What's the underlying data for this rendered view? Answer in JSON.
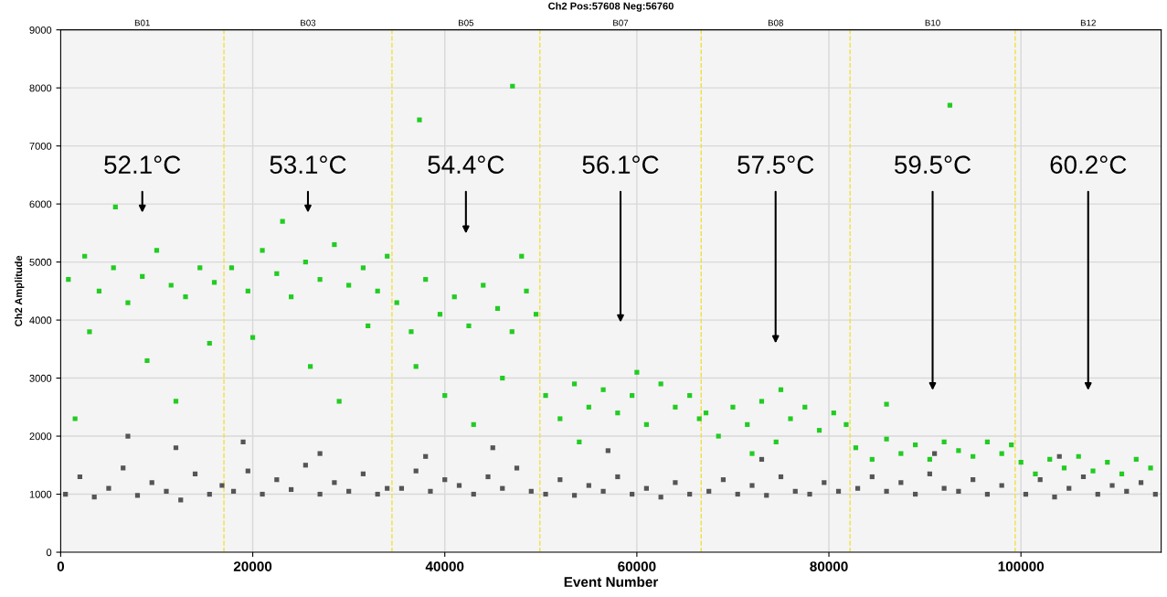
{
  "chart_data": {
    "type": "scatter",
    "title": "Ch2 Pos:57608 Neg:56760",
    "xlabel": "Event Number",
    "ylabel": "Ch2 Amplitude",
    "xlim": [
      0,
      114600
    ],
    "xticks": [
      0,
      20000,
      40000,
      60000,
      80000,
      100000
    ],
    "ylim": [
      0,
      9000
    ],
    "yticks": [
      0,
      1000,
      2000,
      3000,
      4000,
      5000,
      6000,
      7000,
      8000,
      9000
    ],
    "grid": true,
    "marker": "square",
    "series": [
      {
        "color": "#555555",
        "x": [
          500,
          2000,
          3500,
          5000,
          6500,
          8000,
          9500,
          11000,
          12500,
          14000,
          15500,
          16800,
          18000,
          19500,
          21000,
          22500,
          24000,
          25500,
          27000,
          28500,
          30000,
          31500,
          33000,
          34000,
          35500,
          37000,
          38500,
          40000,
          41500,
          43000,
          44500,
          46000,
          47500,
          49000,
          50500,
          52000,
          53500,
          55000,
          56500,
          58000,
          59500,
          61000,
          62500,
          64000,
          65500,
          67500,
          69000,
          70500,
          72000,
          73500,
          75000,
          76500,
          78000,
          79500,
          81000,
          83000,
          84500,
          86000,
          87500,
          89000,
          90500,
          92000,
          93500,
          95000,
          96500,
          98000,
          100500,
          102000,
          103500,
          105000,
          106500,
          108000,
          109500,
          111000,
          112500,
          114000,
          7000,
          12000,
          19000,
          27000,
          38000,
          45000,
          57000,
          73000,
          91000,
          104000
        ],
        "values": [
          1000,
          1300,
          950,
          1100,
          1450,
          980,
          1200,
          1050,
          900,
          1350,
          1000,
          1150,
          1050,
          1400,
          1000,
          1250,
          1080,
          1500,
          1000,
          1200,
          1050,
          1350,
          1000,
          1100,
          1100,
          1400,
          1050,
          1250,
          1150,
          1000,
          1300,
          1100,
          1450,
          1050,
          1000,
          1250,
          980,
          1150,
          1050,
          1300,
          1000,
          1100,
          950,
          1200,
          1000,
          1050,
          1250,
          1000,
          1150,
          980,
          1300,
          1050,
          1000,
          1200,
          1050,
          1100,
          1300,
          1050,
          1200,
          1000,
          1350,
          1100,
          1050,
          1250,
          1000,
          1150,
          1000,
          1250,
          950,
          1100,
          1300,
          1000,
          1150,
          1050,
          1200,
          1000,
          2000,
          1800,
          1900,
          1700,
          1650,
          1800,
          1750,
          1600,
          1700,
          1650
        ]
      },
      {
        "color": "#22cc22",
        "x": [
          800,
          2500,
          4000,
          5500,
          7000,
          8500,
          10000,
          11500,
          13000,
          14500,
          16000,
          3000,
          9000,
          12000,
          1500,
          15500,
          5700,
          17800,
          19500,
          21000,
          22500,
          24000,
          25500,
          27000,
          28500,
          30000,
          31500,
          33000,
          34000,
          20000,
          26000,
          29000,
          23100,
          32000,
          35000,
          36500,
          38000,
          39500,
          41000,
          42500,
          44000,
          45500,
          47000,
          48500,
          49500,
          37000,
          40000,
          43000,
          46000,
          37360,
          47050,
          48000,
          50500,
          52000,
          53500,
          55000,
          56500,
          58000,
          59500,
          61000,
          62500,
          64000,
          65500,
          66500,
          54000,
          60000,
          67200,
          68500,
          70000,
          71500,
          73000,
          74500,
          76000,
          77500,
          79000,
          80500,
          81800,
          75000,
          72000,
          82800,
          84500,
          86000,
          87500,
          89000,
          90500,
          92000,
          93500,
          95000,
          96500,
          98000,
          99000,
          86000,
          92600,
          100000,
          101500,
          103000,
          104500,
          106000,
          107500,
          109000,
          110500,
          112000,
          113500
        ],
        "values": [
          4700,
          5100,
          4500,
          4900,
          4300,
          4750,
          5200,
          4600,
          4400,
          4900,
          4650,
          3800,
          3300,
          2600,
          2300,
          3600,
          5950,
          4900,
          4500,
          5200,
          4800,
          4400,
          5000,
          4700,
          5300,
          4600,
          4900,
          4500,
          5100,
          3700,
          3200,
          2600,
          5700,
          3900,
          4300,
          3800,
          4700,
          4100,
          4400,
          3900,
          4600,
          4200,
          3800,
          4500,
          4100,
          3200,
          2700,
          2200,
          3000,
          7450,
          8030,
          5100,
          2700,
          2300,
          2900,
          2500,
          2800,
          2400,
          2700,
          2200,
          2900,
          2500,
          2700,
          2300,
          1900,
          3100,
          2400,
          2000,
          2500,
          2200,
          2600,
          1900,
          2300,
          2500,
          2100,
          2400,
          2200,
          2800,
          1700,
          1800,
          1600,
          1950,
          1700,
          1850,
          1600,
          1900,
          1750,
          1650,
          1900,
          1700,
          1850,
          2550,
          7700,
          1550,
          1350,
          1600,
          1450,
          1650,
          1400,
          1550,
          1350,
          1600,
          1450
        ]
      }
    ],
    "ref_lines": [
      {
        "axis": "x",
        "value": 17000,
        "color": "#f0e040",
        "line_style": "dashed"
      },
      {
        "axis": "x",
        "value": 34500,
        "color": "#f0e040",
        "line_style": "dashed"
      },
      {
        "axis": "x",
        "value": 49900,
        "color": "#f0e040",
        "line_style": "dashed"
      },
      {
        "axis": "x",
        "value": 66700,
        "color": "#f0e040",
        "line_style": "dashed"
      },
      {
        "axis": "x",
        "value": 82200,
        "color": "#f0e040",
        "line_style": "dashed"
      },
      {
        "axis": "x",
        "value": 99400,
        "color": "#f0e040",
        "line_style": "dashed"
      }
    ],
    "annotations": [
      "B01",
      "B03",
      "B05",
      "B07",
      "B08",
      "B10",
      "B12",
      "52.1°C",
      "53.1°C",
      "54.4°C",
      "56.1°C",
      "57.5°C",
      "59.5°C",
      "60.2°C"
    ]
  }
}
